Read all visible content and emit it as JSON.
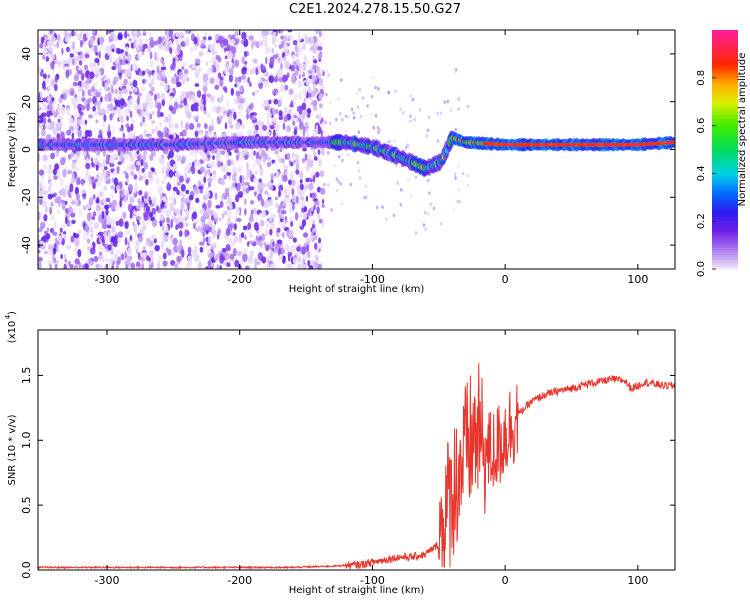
{
  "title": "C2E1.2024.278.15.50.G27",
  "chart_data": [
    {
      "type": "heatmap",
      "xlabel": "Height of straight line (km)",
      "ylabel": "Frequency (Hz)",
      "xlim": [
        -352,
        128
      ],
      "ylim": [
        -50,
        50
      ],
      "xticks": [
        -300,
        -200,
        -100,
        0,
        100
      ],
      "yticks": [
        -40,
        -20,
        0,
        20,
        40
      ],
      "colorbar": {
        "label": "Normalized spectral amplitude",
        "range": [
          0.0,
          1.0
        ],
        "ticks": [
          0.0,
          0.2,
          0.4,
          0.6,
          0.8
        ]
      },
      "band_centre_hz": [
        {
          "x": -350,
          "y": 2
        },
        {
          "x": -300,
          "y": 2
        },
        {
          "x": -250,
          "y": 2
        },
        {
          "x": -200,
          "y": 3
        },
        {
          "x": -150,
          "y": 3
        },
        {
          "x": -120,
          "y": 3
        },
        {
          "x": -100,
          "y": 1
        },
        {
          "x": -80,
          "y": -3
        },
        {
          "x": -60,
          "y": -8
        },
        {
          "x": -48,
          "y": -5
        },
        {
          "x": -40,
          "y": 5
        },
        {
          "x": -30,
          "y": 3
        },
        {
          "x": 0,
          "y": 2
        },
        {
          "x": 50,
          "y": 2
        },
        {
          "x": 100,
          "y": 2
        },
        {
          "x": 128,
          "y": 3
        }
      ]
    },
    {
      "type": "line",
      "xlabel": "Height of straight line (km)",
      "ylabel": "SNR (10 * v/v)",
      "yscale_label": "(x10",
      "yscale_exp": "4",
      "xlim": [
        -352,
        128
      ],
      "ylim": [
        0,
        1.85
      ],
      "xticks": [
        -300,
        -200,
        -100,
        0,
        100
      ],
      "yticks": [
        "0.0",
        "0.5",
        "1.0",
        "1.5"
      ],
      "series": [
        {
          "color": "#e8342b",
          "x": [
            -352,
            -300,
            -250,
            -200,
            -160,
            -130,
            -110,
            -100,
            -90,
            -80,
            -70,
            -60,
            -50,
            -45,
            -40,
            -35,
            -30,
            -25,
            -20,
            -15,
            -10,
            -5,
            0,
            5,
            10,
            20,
            30,
            40,
            50,
            60,
            70,
            80,
            90,
            95,
            100,
            105,
            110,
            120,
            128
          ],
          "y": [
            0.02,
            0.02,
            0.02,
            0.02,
            0.02,
            0.03,
            0.04,
            0.06,
            0.08,
            0.1,
            0.1,
            0.12,
            0.2,
            0.45,
            0.6,
            0.75,
            0.9,
            1.0,
            1.05,
            0.9,
            0.9,
            0.95,
            1.05,
            1.12,
            1.2,
            1.3,
            1.35,
            1.38,
            1.4,
            1.43,
            1.45,
            1.47,
            1.46,
            1.4,
            1.42,
            1.45,
            1.44,
            1.42,
            1.42
          ]
        }
      ]
    }
  ]
}
